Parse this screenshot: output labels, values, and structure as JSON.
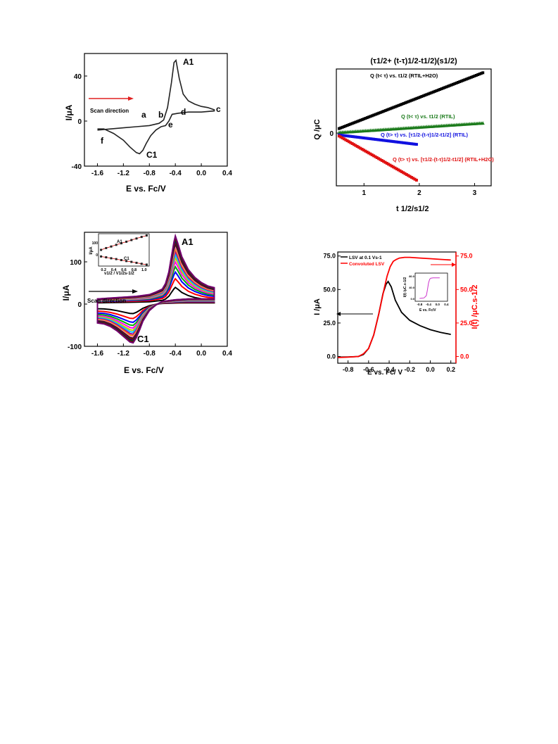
{
  "chart_data": [
    {
      "type": "line",
      "panel": "top-left",
      "xlabel": "E  vs. Fc/V",
      "ylabel": "I/μA",
      "xlim": [
        -1.8,
        0.4
      ],
      "ylim": [
        -40,
        60
      ],
      "xticks": [
        "-1.6",
        "-1.2",
        "-0.8",
        "-0.4",
        "0.0",
        "0.4"
      ],
      "yticks": [
        "40",
        "0",
        "-40"
      ],
      "annotations": {
        "scan": "Scan direction",
        "peak_a": "A1",
        "peak_c": "C1",
        "a": "a",
        "b": "b",
        "c": "c",
        "d": "d",
        "e": "e",
        "f": "f"
      },
      "series": [
        {
          "x": [
            -1.6,
            -1.4,
            -1.2,
            -1.0,
            -0.8,
            -0.65,
            -0.58,
            -0.52,
            -0.46,
            -0.42,
            -0.39,
            -0.34,
            -0.28,
            -0.2,
            -0.1,
            0.0,
            0.1,
            0.2
          ],
          "y": [
            -8,
            -7,
            -6,
            -5,
            -4,
            -2,
            1,
            12,
            34,
            52,
            54,
            38,
            24,
            18,
            15,
            13,
            12,
            10
          ]
        },
        {
          "x": [
            0.2,
            0.0,
            -0.2,
            -0.35,
            -0.45,
            -0.5,
            -0.55,
            -0.62,
            -0.7,
            -0.78,
            -0.85,
            -0.9,
            -0.95,
            -1.0,
            -1.1,
            -1.2,
            -1.35,
            -1.5,
            -1.6
          ],
          "y": [
            9,
            8,
            8,
            7,
            6,
            0,
            -4,
            -5,
            -8,
            -13,
            -20,
            -26,
            -29,
            -28,
            -23,
            -17,
            -11,
            -7,
            -7
          ]
        }
      ]
    },
    {
      "type": "scatter",
      "panel": "top-right",
      "title": "(τ1/2+ (t-τ)1/2-t1/2)(s1/2)",
      "xlabel": "t 1/2/s1/2",
      "ylabel": "Q /μC",
      "xlim": [
        0.5,
        3.3
      ],
      "ylim": [
        -1.4,
        1.7
      ],
      "xticks": [
        "1",
        "2",
        "3"
      ],
      "yticks": [
        "0"
      ],
      "series": [
        {
          "name": "Q (t< τ) vs. t1/2 (RTIL+H2O)",
          "color": "#000000",
          "x0": 0.55,
          "x1": 3.15,
          "y0": 0.12,
          "y1": 1.6
        },
        {
          "name": "Q (t< τ) vs. t1/2 (RTIL)",
          "color": "#1a7a1a",
          "x0": 0.55,
          "x1": 3.15,
          "y0": 0.02,
          "y1": 0.27
        },
        {
          "name": "Q (t> τ) vs. [τ1/2-(t-τ)1/2-t1/2] (RTIL)",
          "color": "#1010e0",
          "x0": 0.55,
          "x1": 1.95,
          "y0": -0.05,
          "y1": -0.3
        },
        {
          "name": "Q (t> τ) vs. [τ1/2-(t-τ)1/2-t1/2] (RTIL+H2O)",
          "color": "#e01010",
          "x0": 0.55,
          "x1": 1.95,
          "y0": -0.08,
          "y1": -1.25
        }
      ]
    },
    {
      "type": "line",
      "panel": "bottom-left",
      "xlabel": "E vs. Fc/V",
      "ylabel": "I/μA",
      "xlim": [
        -1.8,
        0.4
      ],
      "ylim": [
        -100,
        170
      ],
      "xticks": [
        "-1.6",
        "-1.2",
        "-0.8",
        "-0.4",
        "0.0",
        "0.4"
      ],
      "yticks": [
        "100",
        "0",
        "-100"
      ],
      "annotations": {
        "scan": "Scan direction",
        "peak_a": "A1",
        "peak_c": "C1"
      },
      "scale_factors": [
        0.25,
        0.38,
        0.48,
        0.56,
        0.63,
        0.69,
        0.74,
        0.79,
        0.83,
        0.87,
        0.9,
        0.93,
        0.96,
        0.98,
        1.0,
        1.02
      ],
      "colors": [
        "#000000",
        "#ff0000",
        "#0000ff",
        "#00b000",
        "#ff00ff",
        "#c8c800",
        "#00c0ff",
        "#a000a0",
        "#ff8000",
        "#ff80c0",
        "#202020",
        "#900000",
        "#000090",
        "#006000",
        "#800000",
        "#700070"
      ],
      "inset": {
        "xlabel": "ν1/2 / V1/2s-1/2",
        "ylabel": "I/μA",
        "xticks": [
          "0.2",
          "0.4",
          "0.6",
          "0.8",
          "1.0"
        ],
        "yticks": [
          "100",
          "0"
        ],
        "label_a": "A1",
        "label_c": "C1",
        "x": [
          0.15,
          0.25,
          0.35,
          0.45,
          0.55,
          0.65,
          0.75,
          0.85,
          0.95,
          1.05
        ],
        "anodic": [
          40,
          55,
          68,
          82,
          95,
          108,
          122,
          135,
          148,
          160
        ],
        "cathodic": [
          -15,
          -22,
          -30,
          -37,
          -45,
          -53,
          -60,
          -68,
          -76,
          -83
        ]
      }
    },
    {
      "type": "line",
      "panel": "bottom-right",
      "xlabel": "E vs. Fc/ V",
      "ylabel": "I /μA",
      "y2label": "I(t) /μC.s-1/2",
      "xlim": [
        -0.9,
        0.25
      ],
      "ylim": [
        -5,
        78
      ],
      "xticks": [
        "-0.8",
        "-0.6",
        "-0.4",
        "-0.2",
        "0.0",
        "0.2"
      ],
      "yticks": [
        "75.0",
        "50.0",
        "25.0",
        "0.0"
      ],
      "y2ticks": [
        "75.0",
        "50.0",
        "25.0",
        "0.0"
      ],
      "series": [
        {
          "name": "LSV at 0.1 Vs-1",
          "color": "#000000",
          "x": [
            -0.9,
            -0.8,
            -0.7,
            -0.65,
            -0.6,
            -0.55,
            -0.5,
            -0.46,
            -0.43,
            -0.41,
            -0.38,
            -0.34,
            -0.28,
            -0.2,
            -0.1,
            0.0,
            0.1,
            0.2
          ],
          "y": [
            -0.5,
            -0.3,
            0,
            1.5,
            6,
            16,
            32,
            47,
            54,
            56,
            52,
            42,
            33,
            27,
            23,
            20,
            18,
            16.5
          ]
        },
        {
          "name": "Convoluted LSV",
          "color": "#ff0000",
          "x": [
            -0.9,
            -0.8,
            -0.7,
            -0.65,
            -0.6,
            -0.55,
            -0.5,
            -0.45,
            -0.42,
            -0.39,
            -0.36,
            -0.33,
            -0.3,
            -0.25,
            -0.2,
            -0.1,
            0.0,
            0.1,
            0.2
          ],
          "y": [
            -0.8,
            -0.5,
            0,
            2,
            6,
            16,
            32,
            50,
            60,
            67,
            71,
            72.5,
            73.5,
            74,
            74,
            73.5,
            73,
            72.5,
            72
          ]
        }
      ],
      "inset": {
        "xlabel": "E vs. Fc/V",
        "ylabel": "I(t) /μC.s-1/2",
        "xticks": [
          "-0.8",
          "-0.4",
          "0.0",
          "0.4"
        ],
        "yticks": [
          "80.0",
          "40.0",
          "0.0"
        ]
      }
    }
  ]
}
